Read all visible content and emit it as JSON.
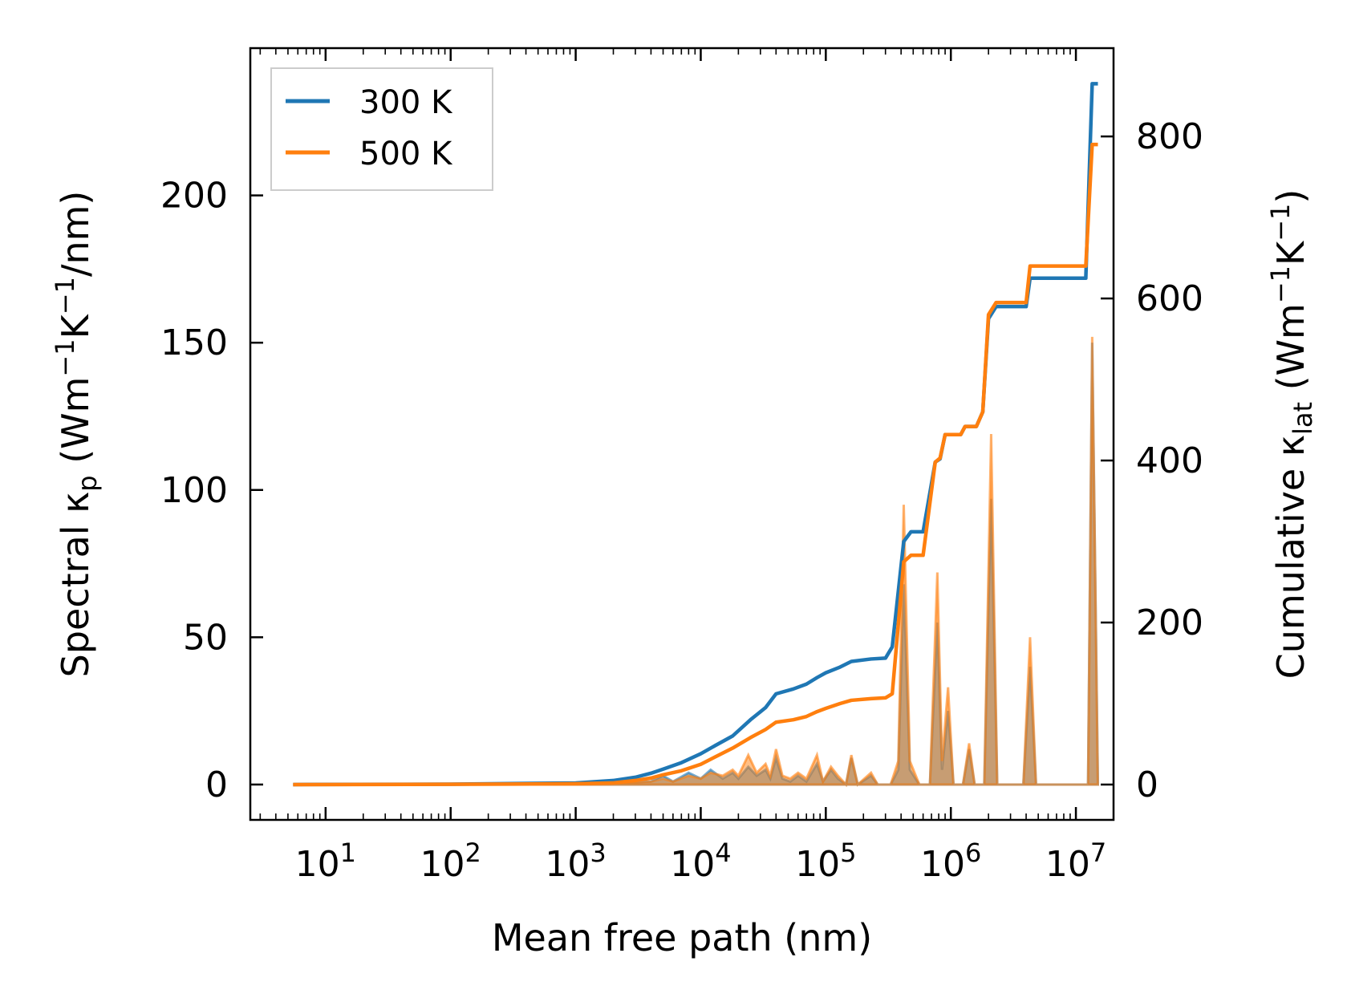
{
  "chart_data": {
    "type": "line",
    "title": "",
    "xlabel": "Mean free path (nm)",
    "ylabel_left": "Spectral κp (Wm−1K−1/nm)",
    "ylabel_right": "Cumulative κlat (Wm−1K−1)",
    "xscale": "log",
    "xlim": [
      2.5,
      20000000.0
    ],
    "ylim_left": [
      -12,
      250
    ],
    "ylim_right": [
      -43.6,
      909
    ],
    "x_tick_labels": [
      "10^1",
      "10^2",
      "10^3",
      "10^4",
      "10^5",
      "10^6",
      "10^7"
    ],
    "y_left_ticks": [
      0,
      50,
      100,
      150,
      200
    ],
    "y_right_ticks": [
      0,
      200,
      400,
      600,
      800
    ],
    "legend": {
      "position": "top-left",
      "entries": [
        "300 K",
        "500 K"
      ]
    },
    "colors": {
      "300 K": "#1f77b4",
      "500 K": "#ff7f0e",
      "axes": "#000000",
      "legend_border": "#cccccc"
    },
    "series": [
      {
        "name": "300 K",
        "axis": "right",
        "kind": "cumulative",
        "points": [
          [
            5.5,
            0
          ],
          [
            100,
            0.5
          ],
          [
            1000,
            2
          ],
          [
            2000,
            5
          ],
          [
            3000,
            9
          ],
          [
            4000,
            14
          ],
          [
            5000,
            19
          ],
          [
            7000,
            27
          ],
          [
            10000,
            38
          ],
          [
            13000,
            48
          ],
          [
            18000,
            60
          ],
          [
            25000,
            80
          ],
          [
            33000,
            95
          ],
          [
            40000,
            112
          ],
          [
            55000,
            118
          ],
          [
            70000,
            124
          ],
          [
            85000,
            132
          ],
          [
            100000,
            138
          ],
          [
            130000,
            145
          ],
          [
            160000,
            152
          ],
          [
            230000,
            155
          ],
          [
            300000,
            156
          ],
          [
            340000,
            170
          ],
          [
            420000,
            300
          ],
          [
            480000,
            312
          ],
          [
            600000,
            312
          ],
          [
            750000,
            398
          ],
          [
            820000,
            402
          ],
          [
            900000,
            432
          ],
          [
            1200000,
            432
          ],
          [
            1300000,
            442
          ],
          [
            1600000,
            442
          ],
          [
            1800000,
            460
          ],
          [
            2000000,
            575
          ],
          [
            2300000,
            590
          ],
          [
            3000000,
            590
          ],
          [
            4000000,
            590
          ],
          [
            4300000,
            625
          ],
          [
            6000000,
            625
          ],
          [
            12000000,
            625
          ],
          [
            13500000,
            865
          ],
          [
            15000000,
            865
          ]
        ]
      },
      {
        "name": "500 K",
        "axis": "right",
        "kind": "cumulative",
        "points": [
          [
            5.5,
            0
          ],
          [
            100,
            0.3
          ],
          [
            1000,
            1
          ],
          [
            2000,
            2
          ],
          [
            3000,
            5
          ],
          [
            4000,
            8
          ],
          [
            5000,
            12
          ],
          [
            7000,
            17
          ],
          [
            10000,
            25
          ],
          [
            13000,
            34
          ],
          [
            18000,
            45
          ],
          [
            25000,
            58
          ],
          [
            33000,
            68
          ],
          [
            40000,
            77
          ],
          [
            55000,
            80
          ],
          [
            70000,
            84
          ],
          [
            85000,
            90
          ],
          [
            100000,
            94
          ],
          [
            130000,
            100
          ],
          [
            160000,
            104
          ],
          [
            230000,
            106
          ],
          [
            300000,
            107
          ],
          [
            340000,
            112
          ],
          [
            420000,
            275
          ],
          [
            480000,
            283
          ],
          [
            600000,
            283
          ],
          [
            750000,
            398
          ],
          [
            820000,
            403
          ],
          [
            900000,
            432
          ],
          [
            1200000,
            432
          ],
          [
            1300000,
            442
          ],
          [
            1600000,
            442
          ],
          [
            1800000,
            460
          ],
          [
            2000000,
            580
          ],
          [
            2300000,
            595
          ],
          [
            3000000,
            595
          ],
          [
            4000000,
            595
          ],
          [
            4300000,
            640
          ],
          [
            6000000,
            640
          ],
          [
            12000000,
            640
          ],
          [
            13500000,
            790
          ],
          [
            15000000,
            790
          ]
        ]
      },
      {
        "name": "300 K",
        "axis": "left",
        "kind": "spectral",
        "points": [
          [
            5.5,
            0
          ],
          [
            500,
            0.1
          ],
          [
            2000,
            0.5
          ],
          [
            4000,
            1
          ],
          [
            5000,
            3
          ],
          [
            6000,
            1
          ],
          [
            8000,
            4
          ],
          [
            10000,
            2
          ],
          [
            12000,
            5
          ],
          [
            15000,
            2
          ],
          [
            18000,
            4
          ],
          [
            20000,
            2
          ],
          [
            24000,
            6
          ],
          [
            28000,
            3
          ],
          [
            33000,
            5
          ],
          [
            36000,
            2
          ],
          [
            40000,
            9
          ],
          [
            45000,
            2
          ],
          [
            52000,
            1
          ],
          [
            60000,
            3
          ],
          [
            70000,
            1
          ],
          [
            85000,
            7
          ],
          [
            95000,
            1
          ],
          [
            110000,
            5
          ],
          [
            125000,
            2
          ],
          [
            145000,
            0
          ],
          [
            160000,
            9
          ],
          [
            180000,
            0
          ],
          [
            230000,
            3
          ],
          [
            260000,
            0
          ],
          [
            330000,
            0
          ],
          [
            380000,
            5
          ],
          [
            420000,
            68
          ],
          [
            470000,
            5
          ],
          [
            560000,
            0
          ],
          [
            680000,
            0
          ],
          [
            780000,
            55
          ],
          [
            850000,
            5
          ],
          [
            950000,
            25
          ],
          [
            1050000,
            0
          ],
          [
            1250000,
            0
          ],
          [
            1400000,
            12
          ],
          [
            1550000,
            0
          ],
          [
            1850000,
            0
          ],
          [
            2100000,
            97
          ],
          [
            2350000,
            0
          ],
          [
            3800000,
            0
          ],
          [
            4300000,
            40
          ],
          [
            4800000,
            0
          ],
          [
            12500000,
            0
          ],
          [
            13500000,
            150
          ],
          [
            15000000,
            0
          ]
        ]
      },
      {
        "name": "500 K",
        "axis": "left",
        "kind": "spectral",
        "points": [
          [
            5.5,
            0
          ],
          [
            500,
            0.1
          ],
          [
            2000,
            0.5
          ],
          [
            4000,
            1
          ],
          [
            5000,
            2
          ],
          [
            6000,
            1
          ],
          [
            8000,
            3
          ],
          [
            10000,
            2
          ],
          [
            12000,
            4
          ],
          [
            15000,
            3
          ],
          [
            18000,
            5
          ],
          [
            20000,
            3
          ],
          [
            24000,
            10
          ],
          [
            28000,
            4
          ],
          [
            33000,
            7
          ],
          [
            36000,
            3
          ],
          [
            40000,
            12
          ],
          [
            45000,
            3
          ],
          [
            52000,
            2
          ],
          [
            60000,
            4
          ],
          [
            70000,
            2
          ],
          [
            85000,
            10
          ],
          [
            95000,
            1
          ],
          [
            110000,
            6
          ],
          [
            125000,
            3
          ],
          [
            145000,
            0
          ],
          [
            160000,
            10
          ],
          [
            180000,
            0
          ],
          [
            230000,
            4
          ],
          [
            260000,
            0
          ],
          [
            330000,
            0
          ],
          [
            380000,
            8
          ],
          [
            420000,
            95
          ],
          [
            470000,
            8
          ],
          [
            560000,
            0
          ],
          [
            680000,
            0
          ],
          [
            780000,
            72
          ],
          [
            850000,
            8
          ],
          [
            950000,
            33
          ],
          [
            1050000,
            0
          ],
          [
            1250000,
            0
          ],
          [
            1400000,
            14
          ],
          [
            1550000,
            0
          ],
          [
            1850000,
            0
          ],
          [
            2100000,
            119
          ],
          [
            2350000,
            0
          ],
          [
            3800000,
            0
          ],
          [
            4300000,
            50
          ],
          [
            4800000,
            0
          ],
          [
            12500000,
            0
          ],
          [
            13500000,
            152
          ],
          [
            15000000,
            0
          ]
        ]
      }
    ]
  }
}
